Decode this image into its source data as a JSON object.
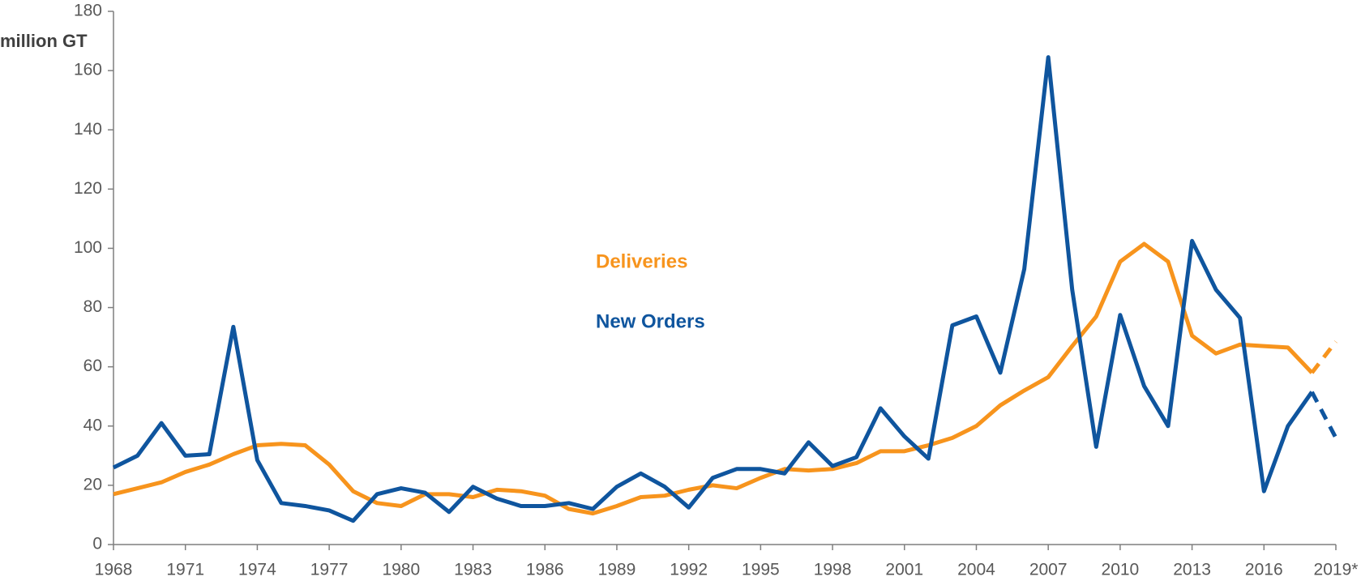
{
  "chart_data": {
    "type": "line",
    "y_label": "million GT",
    "categories": [
      "1968",
      null,
      null,
      "1971",
      null,
      null,
      "1974",
      null,
      null,
      "1977",
      null,
      null,
      "1980",
      null,
      null,
      "1983",
      null,
      null,
      "1986",
      null,
      null,
      "1989",
      null,
      null,
      "1992",
      null,
      null,
      "1995",
      null,
      null,
      "1998",
      null,
      null,
      "2001",
      null,
      null,
      "2004",
      null,
      null,
      "2007",
      null,
      null,
      "2010",
      null,
      null,
      "2013",
      null,
      null,
      "2016",
      null,
      null,
      "2019*"
    ],
    "series": [
      {
        "name": "Deliveries",
        "color": "#f7941d",
        "values": [
          17,
          19,
          21,
          24.5,
          27,
          30.5,
          33.5,
          34,
          33.5,
          27,
          18,
          14,
          13,
          17,
          17,
          16,
          18.5,
          18,
          16.5,
          12,
          10.5,
          13,
          16,
          16.5,
          18.5,
          20,
          19,
          22.5,
          25.5,
          25,
          25.5,
          27.5,
          31.5,
          31.5,
          33.5,
          36,
          40,
          47,
          52,
          56.5,
          67,
          77,
          95.5,
          101.5,
          95.5,
          70.5,
          64.5,
          67.5,
          67,
          66.5,
          58,
          68.5
        ]
      },
      {
        "name": "New Orders",
        "color": "#0f559e",
        "values": [
          26,
          30,
          41,
          30,
          30.5,
          73.5,
          28.5,
          14,
          13,
          11.5,
          8,
          17,
          19,
          17.5,
          11,
          19.5,
          15.5,
          13,
          13,
          14,
          12,
          19.5,
          24,
          19.5,
          12.5,
          22.5,
          25.5,
          25.5,
          24,
          34.5,
          26.5,
          29.5,
          46,
          36.5,
          29,
          74,
          77,
          58,
          93,
          164.5,
          86,
          33,
          77.5,
          53.5,
          40,
          102.5,
          86,
          76.5,
          18,
          40,
          51.5,
          36
        ]
      }
    ],
    "last_segment_dashed": true,
    "ylim": [
      0,
      180
    ],
    "yticks": [
      0,
      20,
      40,
      60,
      80,
      100,
      120,
      140,
      160,
      180
    ]
  }
}
